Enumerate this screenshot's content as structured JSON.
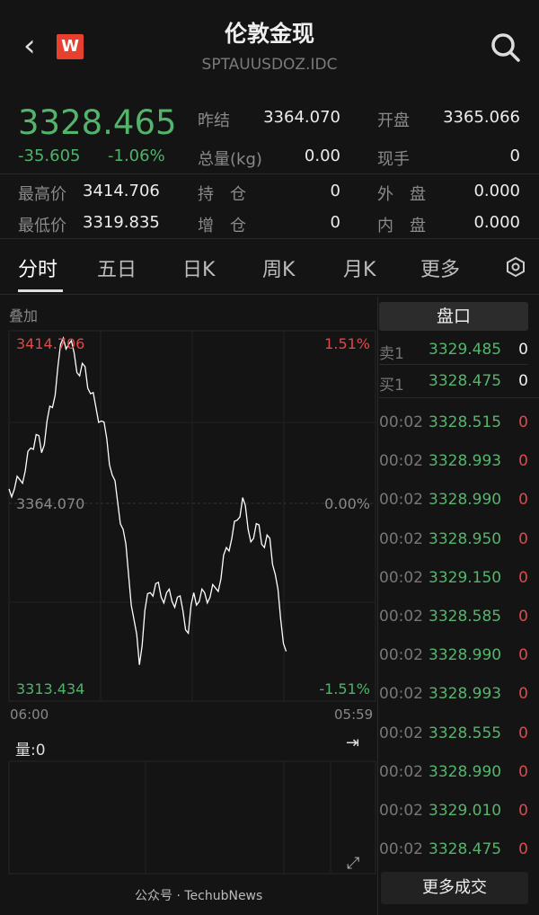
{
  "header": {
    "title": "伦敦金现",
    "code": "SPTAUUSDOZ.IDC",
    "logo": "W",
    "back_icon": "chevron-left-icon",
    "search_icon": "search-icon"
  },
  "quote": {
    "price": "3328.465",
    "change": "-35.605",
    "change_pct": "-1.06%",
    "fields": [
      {
        "label": "昨结",
        "value": "3364.070"
      },
      {
        "label": "开盘",
        "value": "3365.066"
      },
      {
        "label": "总量(kg)",
        "value": "0.00"
      },
      {
        "label": "现手",
        "value": "0"
      },
      {
        "label": "最高价",
        "value": "3414.706"
      },
      {
        "label": "持　仓",
        "value": "0"
      },
      {
        "label": "外　盘",
        "value": "0.000"
      },
      {
        "label": "最低价",
        "value": "3319.835"
      },
      {
        "label": "增　仓",
        "value": "0"
      },
      {
        "label": "内　盘",
        "value": "0.000"
      }
    ]
  },
  "tabs": [
    "分时",
    "五日",
    "日K",
    "周K",
    "月K",
    "更多"
  ],
  "chart": {
    "overlay_label": "叠加",
    "high_label": "3414.706",
    "high_pct": "1.51%",
    "mid_label": "3364.070",
    "mid_pct": "0.00%",
    "low_label": "3313.434",
    "low_pct": "-1.51%",
    "start_time": "06:00",
    "end_time": "05:59",
    "volume_label": "量:0",
    "colors": {
      "line": "#ffffff",
      "up": "#e0484a",
      "down": "#4fb36a"
    }
  },
  "chart_data": {
    "type": "line",
    "ylim": [
      3313.434,
      3414.706
    ],
    "x_ticks": [
      "06:00",
      "05:59"
    ],
    "values": [
      3371.5,
      3371.5,
      3374.0,
      3376.5,
      3382.7,
      3386.4,
      3381.4,
      3390.1,
      3393.8,
      3405.0,
      3412.9,
      3411.2,
      3408.7,
      3402.5,
      3405.0,
      3397.6,
      3393.8,
      3390.1,
      3385.2,
      3375.3,
      3367.8,
      3360.4,
      3348.0,
      3335.6,
      3323.2,
      3338.1,
      3343.0,
      3345.5,
      3341.8,
      3343.0,
      3340.6,
      3341.8,
      3338.1,
      3331.9,
      3343.0,
      3340.6,
      3343.0,
      3341.8,
      3344.3,
      3346.8,
      3355.4,
      3357.9,
      3362.9,
      3369.1,
      3360.4,
      3357.9,
      3361.6,
      3355.4,
      3357.9,
      3348.0,
      3335.6,
      3326.9
    ]
  },
  "orderbook": {
    "title": "盘口",
    "rows": [
      {
        "label": "卖1",
        "price": "3329.485",
        "vol": "0"
      },
      {
        "label": "买1",
        "price": "3328.475",
        "vol": "0"
      }
    ]
  },
  "trades": [
    {
      "time": "00:02",
      "price": "3328.515",
      "vol": "0"
    },
    {
      "time": "00:02",
      "price": "3328.993",
      "vol": "0"
    },
    {
      "time": "00:02",
      "price": "3328.990",
      "vol": "0"
    },
    {
      "time": "00:02",
      "price": "3328.950",
      "vol": "0"
    },
    {
      "time": "00:02",
      "price": "3329.150",
      "vol": "0"
    },
    {
      "time": "00:02",
      "price": "3328.585",
      "vol": "0"
    },
    {
      "time": "00:02",
      "price": "3328.990",
      "vol": "0"
    },
    {
      "time": "00:02",
      "price": "3328.993",
      "vol": "0"
    },
    {
      "time": "00:02",
      "price": "3328.555",
      "vol": "0"
    },
    {
      "time": "00:02",
      "price": "3328.990",
      "vol": "0"
    },
    {
      "time": "00:02",
      "price": "3329.010",
      "vol": "0"
    },
    {
      "time": "00:02",
      "price": "3328.475",
      "vol": "0"
    }
  ],
  "more_trades": "更多成交",
  "watermark": "公众号 · TechubNews"
}
